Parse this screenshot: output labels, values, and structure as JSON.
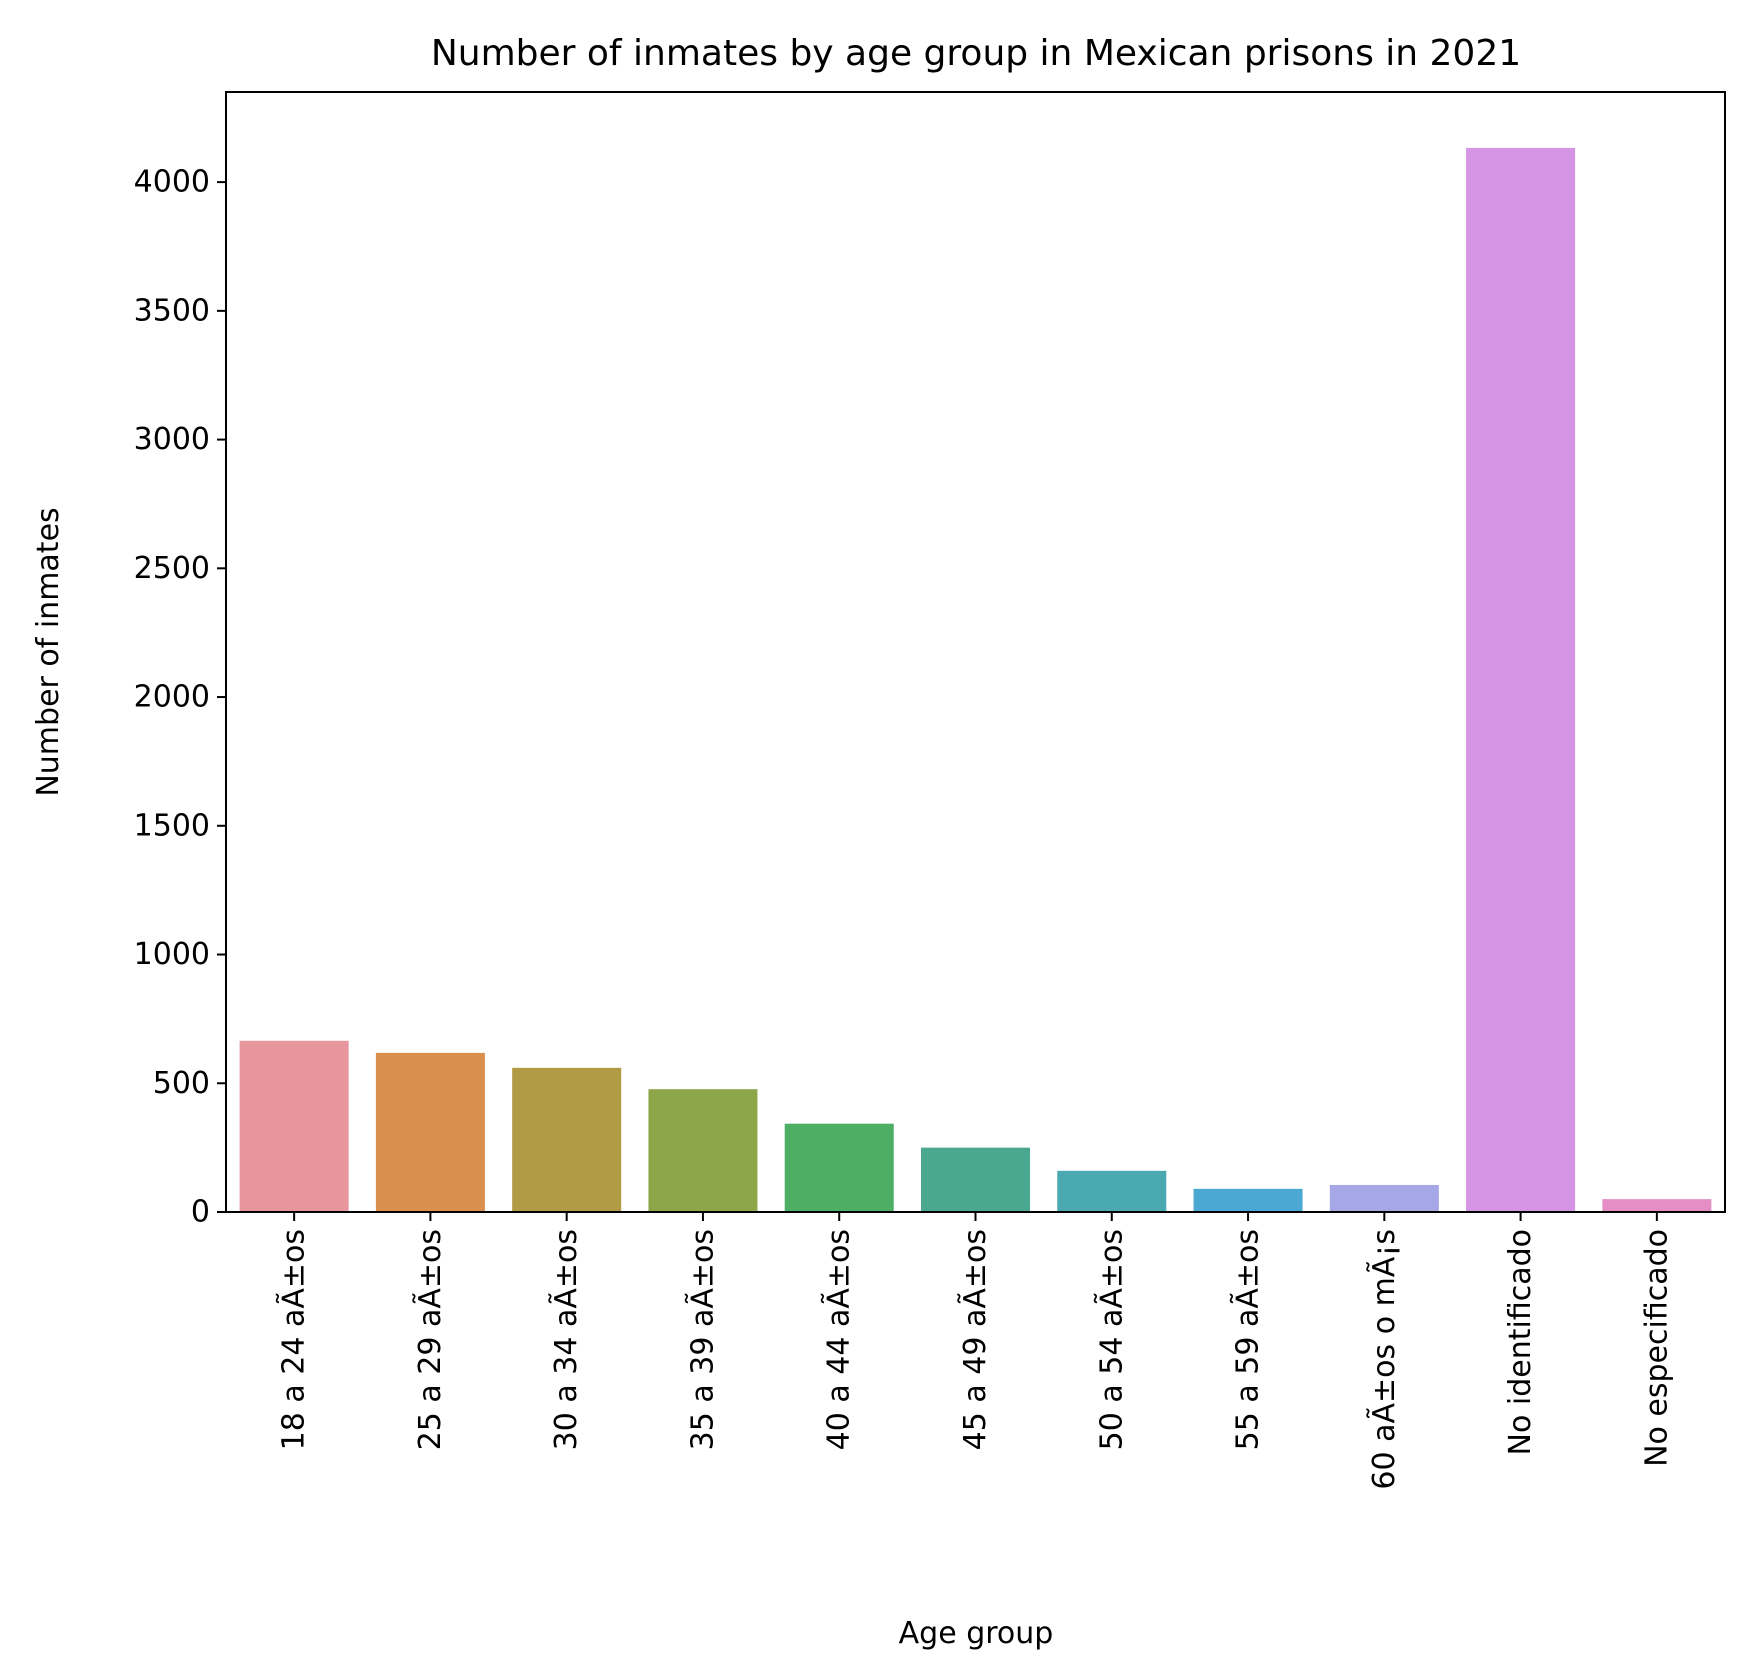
{
  "chart_data": {
    "type": "bar",
    "title": "Number of inmates by age group in Mexican prisons in 2021",
    "xlabel": "Age group",
    "ylabel": "Number of inmates",
    "categories": [
      "18 a 24 aÃ±os",
      "25 a 29 aÃ±os",
      "30 a 34 aÃ±os",
      "35 a 39 aÃ±os",
      "40 a 44 aÃ±os",
      "45 a 49 aÃ±os",
      "50 a 54 aÃ±os",
      "55 a 59 aÃ±os",
      "60 aÃ±os o mÃ¡s",
      "No identificado",
      "No especificado"
    ],
    "values": [
      665,
      618,
      560,
      477,
      343,
      250,
      160,
      90,
      105,
      4133,
      50
    ],
    "colors": [
      "#e8969e",
      "#db8f4d",
      "#b29b45",
      "#8ca648",
      "#4caf63",
      "#4ba890",
      "#4ba9b1",
      "#4aa8d3",
      "#a5a7e6",
      "#d594e4",
      "#e58ec6"
    ],
    "ylim": [
      0,
      4350
    ],
    "yticks": [
      0,
      500,
      1000,
      1500,
      2000,
      2500,
      3000,
      3500,
      4000
    ],
    "grid": false,
    "legend": "none"
  }
}
